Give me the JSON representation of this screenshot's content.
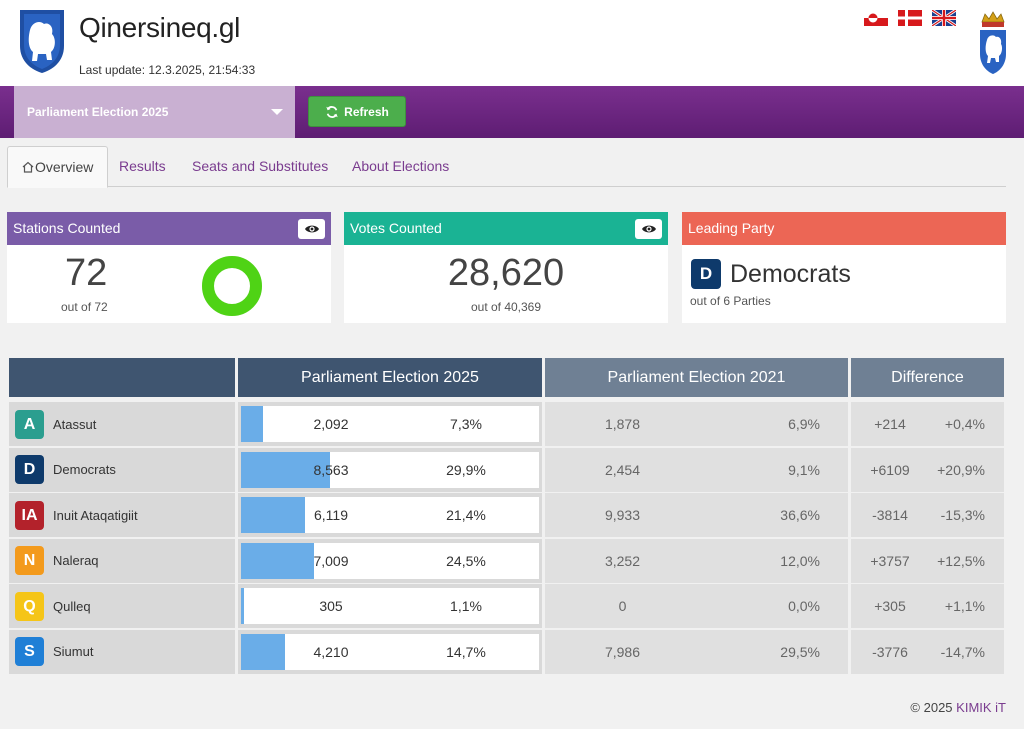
{
  "header": {
    "title": "Qinersineq.gl",
    "last_update": "Last update: 12.3.2025, 21:54:33",
    "flags": [
      "greenland-flag-icon",
      "denmark-flag-icon",
      "uk-flag-icon"
    ]
  },
  "toolbar": {
    "election_selected": "Parliament Election 2025",
    "refresh_label": "Refresh"
  },
  "tabs": [
    {
      "label": "Overview",
      "active": true
    },
    {
      "label": "Results",
      "active": false
    },
    {
      "label": "Seats and Substitutes",
      "active": false
    },
    {
      "label": "About Elections",
      "active": false
    }
  ],
  "cards": {
    "stations": {
      "title": "Stations Counted",
      "value": "72",
      "sub": "out of 72",
      "color": "#7a5ca8",
      "progress": 1.0
    },
    "votes": {
      "title": "Votes Counted",
      "value": "28,620",
      "sub": "out of 40,369",
      "color": "#1ab394"
    },
    "leading": {
      "title": "Leading Party",
      "badge": "D",
      "name": "Democrats",
      "sub": "out of 6 Parties",
      "color": "#ec6655",
      "badge_color": "#0e3a6b"
    }
  },
  "results": {
    "headers": {
      "current": "Parliament Election 2025",
      "previous": "Parliament Election 2021",
      "difference": "Difference"
    },
    "header_colors": {
      "party": "#3f5570",
      "current": "#3f5570",
      "previous": "#6f8094",
      "difference": "#6f8094"
    },
    "rows": [
      {
        "badge": "A",
        "color": "#2b9e8f",
        "name": "Atassut",
        "votes": "2,092",
        "pct": "7,3%",
        "share": 0.073,
        "prev_votes": "1,878",
        "prev_pct": "6,9%",
        "diff_votes": "+214",
        "diff_pct": "+0,4%"
      },
      {
        "badge": "D",
        "color": "#0e3a6b",
        "name": "Democrats",
        "votes": "8,563",
        "pct": "29,9%",
        "share": 0.299,
        "prev_votes": "2,454",
        "prev_pct": "9,1%",
        "diff_votes": "+6109",
        "diff_pct": "+20,9%"
      },
      {
        "badge": "IA",
        "color": "#b3222b",
        "name": "Inuit Ataqatigiit",
        "votes": "6,119",
        "pct": "21,4%",
        "share": 0.214,
        "prev_votes": "9,933",
        "prev_pct": "36,6%",
        "diff_votes": "-3814",
        "diff_pct": "-15,3%"
      },
      {
        "badge": "N",
        "color": "#f39a1c",
        "name": "Naleraq",
        "votes": "7,009",
        "pct": "24,5%",
        "share": 0.245,
        "prev_votes": "3,252",
        "prev_pct": "12,0%",
        "diff_votes": "+3757",
        "diff_pct": "+12,5%"
      },
      {
        "badge": "Q",
        "color": "#f5c518",
        "name": "Qulleq",
        "votes": "305",
        "pct": "1,1%",
        "share": 0.011,
        "prev_votes": "0",
        "prev_pct": "0,0%",
        "diff_votes": "+305",
        "diff_pct": "+1,1%"
      },
      {
        "badge": "S",
        "color": "#1f7fd6",
        "name": "Siumut",
        "votes": "4,210",
        "pct": "14,7%",
        "share": 0.147,
        "prev_votes": "7,986",
        "prev_pct": "29,5%",
        "diff_votes": "-3776",
        "diff_pct": "-14,7%"
      }
    ]
  },
  "footer": {
    "copyright": "© 2025 ",
    "brand": "KIMIK iT"
  }
}
